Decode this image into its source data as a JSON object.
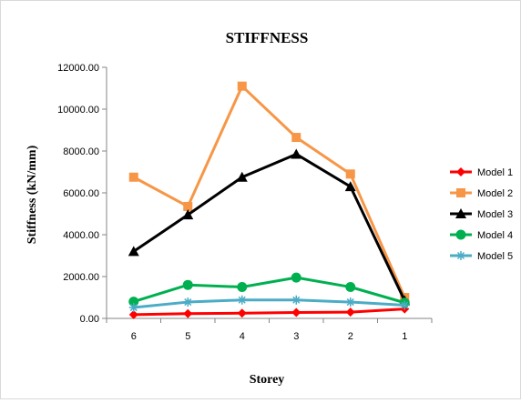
{
  "chart_data": {
    "type": "line",
    "title": "STIFFNESS",
    "xlabel": "Storey",
    "ylabel": "Stiffness (kN/mm)",
    "categories": [
      "6",
      "5",
      "4",
      "3",
      "2",
      "1"
    ],
    "ylim": [
      0,
      12000
    ],
    "yticks": [
      "0.00",
      "2000.00",
      "4000.00",
      "6000.00",
      "8000.00",
      "10000.00",
      "12000.00"
    ],
    "grid": false,
    "legend_position": "right",
    "series": [
      {
        "name": "Model 1",
        "color": "#ff0000",
        "marker": "diamond",
        "values": [
          180,
          230,
          250,
          280,
          300,
          450
        ]
      },
      {
        "name": "Model 2",
        "color": "#f79646",
        "marker": "square",
        "values": [
          6750,
          5350,
          11100,
          8650,
          6900,
          1000
        ]
      },
      {
        "name": "Model 3",
        "color": "#000000",
        "marker": "triangle",
        "values": [
          3200,
          4950,
          6750,
          7850,
          6300,
          850
        ]
      },
      {
        "name": "Model 4",
        "color": "#00b050",
        "marker": "circle",
        "values": [
          800,
          1600,
          1500,
          1950,
          1500,
          750
        ]
      },
      {
        "name": "Model 5",
        "color": "#4bacc6",
        "marker": "star",
        "values": [
          520,
          780,
          880,
          880,
          780,
          630
        ]
      }
    ]
  }
}
